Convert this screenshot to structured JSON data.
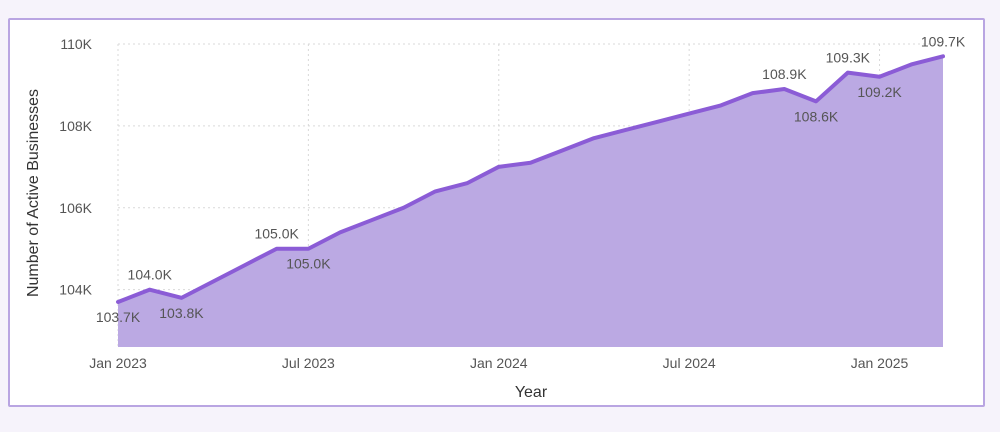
{
  "chart_data": {
    "type": "area",
    "xlabel": "Year",
    "ylabel": "Number of Active Businesses",
    "x_ticks": [
      "Jan 2023",
      "Jul 2023",
      "Jan 2024",
      "Jul 2024",
      "Jan 2025"
    ],
    "y_ticks": [
      "104K",
      "106K",
      "108K",
      "110K"
    ],
    "ylim": [
      103000,
      110000
    ],
    "grid": true,
    "series": [
      {
        "x": [
          "2023-01",
          "2023-02",
          "2023-03",
          "2023-04",
          "2023-05",
          "2023-06",
          "2023-07",
          "2023-08",
          "2023-09",
          "2023-10",
          "2023-11",
          "2023-12",
          "2024-01",
          "2024-02",
          "2024-03",
          "2024-04",
          "2024-05",
          "2024-06",
          "2024-07",
          "2024-08",
          "2024-09",
          "2024-10",
          "2024-11",
          "2024-12",
          "2025-01",
          "2025-02",
          "2025-03"
        ],
        "values": [
          103700,
          104000,
          103800,
          104200,
          104600,
          105000,
          105000,
          105400,
          105700,
          106000,
          106400,
          106600,
          107000,
          107100,
          107400,
          107700,
          107900,
          108100,
          108300,
          108500,
          108800,
          108900,
          108600,
          109300,
          109200,
          109500,
          109700
        ]
      }
    ],
    "data_labels": [
      {
        "x": "2023-01",
        "text": "103.7K",
        "position": "below"
      },
      {
        "x": "2023-02",
        "text": "104.0K",
        "position": "above"
      },
      {
        "x": "2023-03",
        "text": "103.8K",
        "position": "below"
      },
      {
        "x": "2023-06",
        "text": "105.0K",
        "position": "above"
      },
      {
        "x": "2023-07",
        "text": "105.0K",
        "position": "below"
      },
      {
        "x": "2024-10",
        "text": "108.9K",
        "position": "above"
      },
      {
        "x": "2024-11",
        "text": "108.6K",
        "position": "below"
      },
      {
        "x": "2024-12",
        "text": "109.3K",
        "position": "above"
      },
      {
        "x": "2025-01",
        "text": "109.2K",
        "position": "below"
      },
      {
        "x": "2025-03",
        "text": "109.7K",
        "position": "above"
      }
    ],
    "colors": {
      "line": "#8b5cd6",
      "area": "#bba9e3",
      "grid": "#d9d9d9",
      "frame_border": "#b9a5e2"
    }
  }
}
